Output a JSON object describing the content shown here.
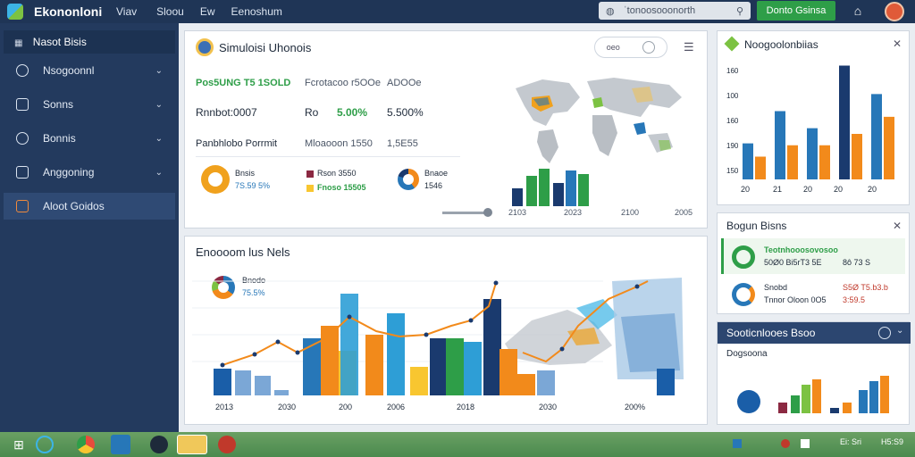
{
  "app": {
    "title": "Ekononloni",
    "menu": [
      "Viav",
      "Sloou",
      "Ew",
      "Eenoshum"
    ],
    "search": {
      "value": "ˈtonoosooonorth"
    },
    "action_button": "Donto Gsinsa"
  },
  "sidebar": {
    "header": "Nasot Bisis",
    "items": [
      {
        "label": "Nsogoonnl"
      },
      {
        "label": "Sonns"
      },
      {
        "label": "Bonnis"
      },
      {
        "label": "Anggoning"
      },
      {
        "label": "Aloot Goidos"
      }
    ]
  },
  "overview": {
    "title": "Simuloisi Uhonois",
    "tools_label": "oeo",
    "rows": [
      {
        "label": "Pos5UNG T5 1SOLD",
        "col2": "Fcrotacoo r5OOe",
        "col3": "ADOOe"
      },
      {
        "label": "Rnnbot:0007",
        "col2": "Ro",
        "col3": "5.00%",
        "col4": "5.500%"
      },
      {
        "label": "Panbhlobo Porrmit",
        "col2": "Mloaooon 1550",
        "col3": "1,5E55"
      }
    ],
    "legend_a": {
      "label1": "Bnsis",
      "label2": "7S.59 5%"
    },
    "legend_b": {
      "row1": "Rson 3550",
      "row2": "Fnoso 15505"
    },
    "legend_c": {
      "label1": "Bnaoe",
      "label2": "1546"
    },
    "x_labels": [
      "2103",
      "2023",
      "2100",
      "2005"
    ]
  },
  "chart_main": {
    "title": "Enoooom lus Nels",
    "legend_label1": "Bnodo",
    "legend_label2": "75.5%",
    "x_labels": [
      "2013",
      "2030",
      "200",
      "2006",
      "2018",
      "2030",
      "200%"
    ]
  },
  "chart_side": {
    "title": "Noogoolonbiias",
    "y_labels": [
      "160",
      "100",
      "160",
      "190",
      "150"
    ],
    "x_labels": [
      "20",
      "21",
      "20",
      "20",
      "20"
    ],
    "chart_data": {
      "type": "bar",
      "categories": [
        "20",
        "21",
        "20",
        "20",
        "20"
      ],
      "series": [
        {
          "values": [
            95,
            180,
            135,
            300,
            225
          ]
        },
        {
          "values": [
            60,
            90,
            90,
            120,
            165
          ]
        }
      ],
      "ylim": [
        0,
        320
      ],
      "colors": [
        "#2777b8",
        "#f28a1b"
      ]
    }
  },
  "status_panel": {
    "title": "Bogun Bisns",
    "row1": {
      "label": "Teotnhooosovosoo",
      "sub": "50Ø0 Bi5rT3 5E",
      "value": "8ô 73 S"
    },
    "row2": {
      "label": "Snobd",
      "sub": "Tnnor Oloon 0O5",
      "value": "S5Ø T5.b3.b",
      "value2": "3:59.5"
    }
  },
  "bottom_panel": {
    "header": "Sooticnlooes Bsoo",
    "subtitle": "Dogsoona"
  },
  "taskbar": {
    "tray": [
      "Ei: Sri",
      "H5:S9"
    ]
  },
  "colors": {
    "navy": "#1f3556",
    "green": "#2e9e48",
    "blue": "#2777b8",
    "orange": "#f28a1b",
    "dark_navy": "#1a3a6e",
    "yellow": "#f8c630",
    "light_blue": "#7ba7d6"
  }
}
